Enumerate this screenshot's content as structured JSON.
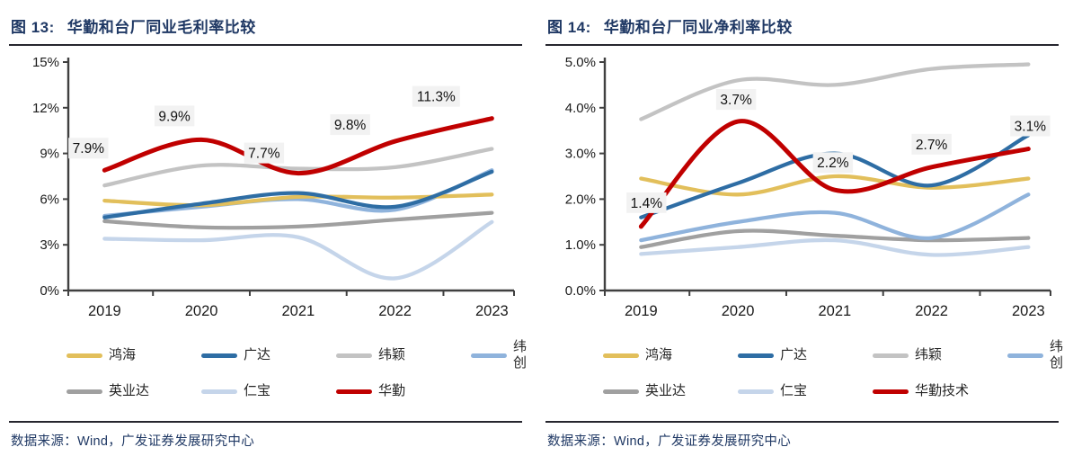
{
  "source_label": "数据来源：Wind，广发证券发展研究中心",
  "colors": {
    "title_text": "#1F3864",
    "rule": "#26262E",
    "axis": "#404040",
    "axis_text": "#1a1a1a",
    "label_box_bg": "#F2F2F2",
    "label_text": "#111111",
    "source_text": "#1F3864"
  },
  "panels": [
    {
      "fig_no": "图 13:",
      "title": "华勤和台厂同业毛利率比较"
    },
    {
      "fig_no": "图 14:",
      "title": "华勤和台厂同业净利率比较"
    }
  ],
  "chart_data": [
    {
      "type": "line",
      "title": "图 13: 华勤和台厂同业毛利率比较",
      "categories": [
        "2019",
        "2020",
        "2021",
        "2022",
        "2023"
      ],
      "xlabel": "",
      "ylabel": "",
      "ylim": [
        0,
        15
      ],
      "ytick_step": 3,
      "ytick_decimals": 0,
      "grid": false,
      "legend_position": "bottom",
      "series": [
        {
          "name": "鸿海",
          "color": "#E2BF5B",
          "z": 5,
          "values": [
            5.9,
            5.6,
            6.15,
            6.1,
            6.3
          ]
        },
        {
          "name": "广达",
          "color": "#2E6DA4",
          "z": 6,
          "values": [
            4.8,
            5.7,
            6.4,
            5.5,
            7.8
          ]
        },
        {
          "name": "纬颖",
          "color": "#C3C3C3",
          "z": 4,
          "values": [
            6.9,
            8.2,
            8.0,
            8.1,
            9.3
          ]
        },
        {
          "name": "纬创",
          "color": "#8FB3DC",
          "z": 3,
          "values": [
            4.9,
            5.5,
            6.0,
            5.3,
            7.9
          ]
        },
        {
          "name": "英业达",
          "color": "#A0A0A0",
          "z": 2,
          "values": [
            4.55,
            4.15,
            4.2,
            4.65,
            5.1
          ]
        },
        {
          "name": "仁宝",
          "color": "#C5D5EA",
          "z": 1,
          "values": [
            3.4,
            3.3,
            3.5,
            0.8,
            4.5
          ]
        },
        {
          "name": "华勤",
          "color": "#C00000",
          "z": 7,
          "emphasis": true,
          "values": [
            7.9,
            9.9,
            7.7,
            9.8,
            11.3
          ],
          "point_labels": [
            {
              "i": 0,
              "text": "7.9%",
              "dx": -18,
              "dy": -24
            },
            {
              "i": 1,
              "text": "9.9%",
              "dx": -30,
              "dy": -26
            },
            {
              "i": 2,
              "text": "7.7%",
              "dx": -38,
              "dy": -22
            },
            {
              "i": 3,
              "text": "9.8%",
              "dx": -50,
              "dy": -18
            },
            {
              "i": 4,
              "text": "11.3%",
              "dx": -62,
              "dy": -24
            }
          ]
        }
      ]
    },
    {
      "type": "line",
      "title": "图 14: 华勤和台厂同业净利率比较",
      "categories": [
        "2019",
        "2020",
        "2021",
        "2022",
        "2023"
      ],
      "xlabel": "",
      "ylabel": "",
      "ylim": [
        0,
        5
      ],
      "ytick_step": 1,
      "ytick_decimals": 1,
      "grid": false,
      "legend_position": "bottom",
      "series": [
        {
          "name": "鸿海",
          "color": "#E2BF5B",
          "z": 5,
          "values": [
            2.45,
            2.1,
            2.5,
            2.25,
            2.45
          ]
        },
        {
          "name": "广达",
          "color": "#2E6DA4",
          "z": 6,
          "values": [
            1.6,
            2.35,
            3.0,
            2.3,
            3.4
          ]
        },
        {
          "name": "纬颖",
          "color": "#C3C3C3",
          "z": 4,
          "values": [
            3.75,
            4.6,
            4.5,
            4.85,
            4.95
          ]
        },
        {
          "name": "纬创",
          "color": "#8FB3DC",
          "z": 3,
          "values": [
            1.1,
            1.5,
            1.7,
            1.15,
            2.1
          ]
        },
        {
          "name": "英业达",
          "color": "#A0A0A0",
          "z": 2,
          "values": [
            0.95,
            1.3,
            1.2,
            1.1,
            1.15
          ]
        },
        {
          "name": "仁宝",
          "color": "#C5D5EA",
          "z": 1,
          "values": [
            0.8,
            0.95,
            1.1,
            0.78,
            0.95
          ]
        },
        {
          "name": "华勤技术",
          "color": "#C00000",
          "z": 7,
          "emphasis": true,
          "values": [
            1.4,
            3.7,
            2.2,
            2.7,
            3.1
          ],
          "point_labels": [
            {
              "i": 0,
              "text": "1.4%",
              "dx": 6,
              "dy": -26
            },
            {
              "i": 1,
              "text": "3.7%",
              "dx": -2,
              "dy": -24
            },
            {
              "i": 2,
              "text": "2.2%",
              "dx": -2,
              "dy": -30
            },
            {
              "i": 3,
              "text": "2.7%",
              "dx": 0,
              "dy": -25
            },
            {
              "i": 4,
              "text": "3.1%",
              "dx": 2,
              "dy": -25
            }
          ]
        }
      ]
    }
  ]
}
